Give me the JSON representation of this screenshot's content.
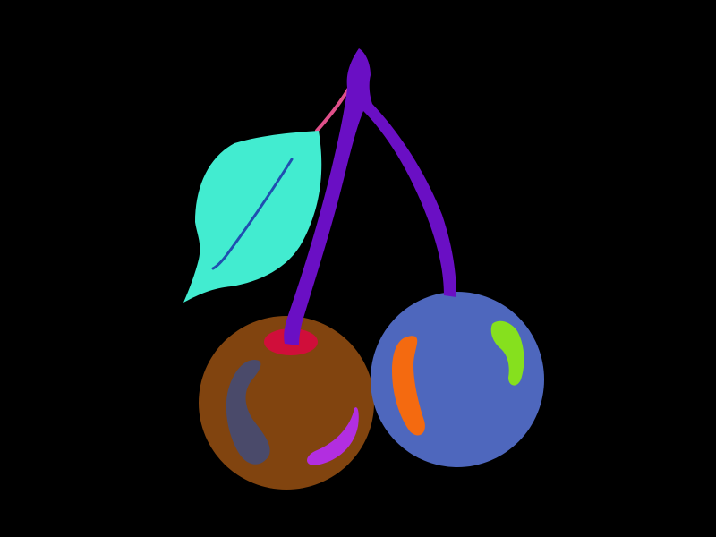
{
  "colors": {
    "background": "#000000",
    "stem": "#6a0fc4",
    "leaf_stalk": "#e0508a",
    "leaf": "#42ecd0",
    "leaf_vein": "#1f4fb0",
    "left_cherry": "#81440f",
    "left_cherry_socket": "#d00e3a",
    "left_highlight_large": "#4a4a6a",
    "left_highlight_small": "#b22ee0",
    "right_cherry": "#4e67bd",
    "right_highlight_left": "#f46a10",
    "right_highlight_right": "#86e01e"
  },
  "icons": {
    "illustration": "cherries-illustration",
    "stem": "cherry-stem-icon",
    "leaf": "leaf-icon",
    "left_cherry": "brown-cherry-icon",
    "right_cherry": "blue-cherry-icon"
  }
}
